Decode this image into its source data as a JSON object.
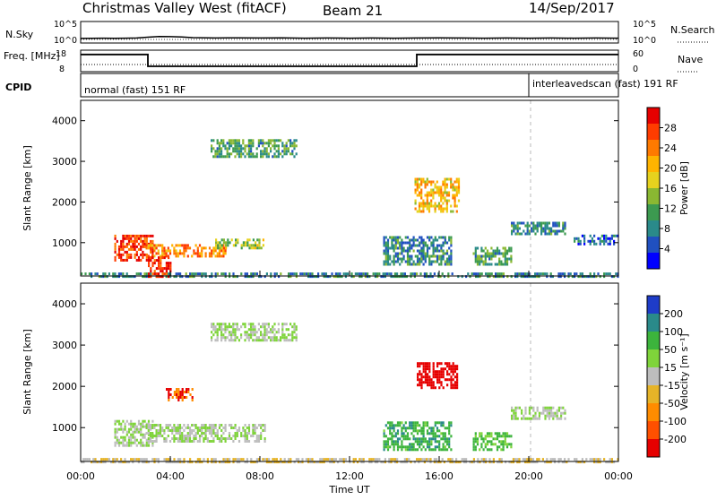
{
  "header": {
    "station": "Christmas Valley West (fitACF)",
    "beam": "Beam 21",
    "date": "14/Sep/2017"
  },
  "colors": {
    "background": "#ffffff",
    "axis": "#000000",
    "sky_line": "#000000",
    "ground_gray": "#bdbdbd"
  },
  "chart_data": [
    {
      "type": "line",
      "panel": "noise",
      "left_label": "N.Sky",
      "right_label": "N.Search",
      "left_ticks": [
        "10^5",
        "10^0"
      ],
      "right_ticks": [
        "10^5",
        "10^0"
      ],
      "x": [
        0,
        0.5,
        1,
        1.5,
        2,
        2.5,
        3,
        3.5,
        4,
        4.5,
        5,
        6,
        7,
        8,
        9,
        10,
        11,
        12,
        13,
        14,
        15,
        16,
        17,
        18,
        19,
        20,
        21,
        22,
        23,
        24
      ],
      "y": [
        0.3,
        0.35,
        0.4,
        0.35,
        0.4,
        0.45,
        0.7,
        0.9,
        0.85,
        0.75,
        0.55,
        0.45,
        0.5,
        0.45,
        0.5,
        0.4,
        0.45,
        0.4,
        0.45,
        0.4,
        0.45,
        0.5,
        0.45,
        0.4,
        0.45,
        0.4,
        0.45,
        0.4,
        0.45,
        0.4
      ],
      "ylim": [
        0,
        5
      ]
    },
    {
      "type": "line",
      "panel": "frequency",
      "left_label": "Freq. [MHz]",
      "right_label": "Nave",
      "left_ticks": [
        18,
        8
      ],
      "right_ticks": [
        60,
        0
      ],
      "freq_segments": [
        {
          "start": 0,
          "end": 3,
          "value": 16
        },
        {
          "start": 3,
          "end": 15,
          "value": 10.5
        },
        {
          "start": 15,
          "end": 24,
          "value": 16
        }
      ],
      "nave_value": 20,
      "ylim": [
        8,
        18
      ]
    },
    {
      "type": "table",
      "panel": "cpid",
      "label": "CPID",
      "segments": [
        {
          "start": 0,
          "end": 20,
          "text": "normal (fast) 151 RF"
        },
        {
          "start": 20,
          "end": 24,
          "text": "interleavedscan (fast) 191 RF"
        }
      ]
    },
    {
      "type": "heatmap",
      "panel": "power",
      "ylabel": "Slant Range [km]",
      "y_ticks": [
        1000,
        2000,
        3000,
        4000
      ],
      "ylim": [
        180,
        4500
      ],
      "colorbar_label": "Power [dB]",
      "colorbar_ticks": [
        4,
        8,
        12,
        16,
        20,
        24,
        28
      ],
      "colorbar_colors": [
        "#0000ff",
        "#2050c0",
        "#2a8a8a",
        "#3c9a50",
        "#8ab832",
        "#e6d21e",
        "#ffb400",
        "#ff7a00",
        "#ff3c00",
        "#e60000"
      ],
      "regions": [
        {
          "t0": 0.0,
          "t1": 24.0,
          "r0": 200,
          "r1": 330,
          "power": 8
        },
        {
          "t0": 1.5,
          "t1": 3.2,
          "r0": 600,
          "r1": 1250,
          "power": 26
        },
        {
          "t0": 2.9,
          "t1": 6.5,
          "r0": 700,
          "r1": 1000,
          "power": 22
        },
        {
          "t0": 6.0,
          "t1": 8.2,
          "r0": 900,
          "r1": 1150,
          "power": 14
        },
        {
          "t0": 3.0,
          "t1": 4.0,
          "r0": 200,
          "r1": 700,
          "power": 28
        },
        {
          "t0": 5.8,
          "t1": 9.6,
          "r0": 3150,
          "r1": 3550,
          "power": 10
        },
        {
          "t0": 14.9,
          "t1": 16.9,
          "r0": 1800,
          "r1": 2600,
          "power": 18
        },
        {
          "t0": 13.5,
          "t1": 16.5,
          "r0": 500,
          "r1": 1200,
          "power": 8
        },
        {
          "t0": 17.5,
          "t1": 19.2,
          "r0": 500,
          "r1": 900,
          "power": 10
        },
        {
          "t0": 19.2,
          "t1": 21.6,
          "r0": 1250,
          "r1": 1550,
          "power": 8
        },
        {
          "t0": 22.0,
          "t1": 24.0,
          "r0": 1000,
          "r1": 1200,
          "power": 6
        }
      ]
    },
    {
      "type": "heatmap",
      "panel": "velocity",
      "ylabel": "Slant Range [km]",
      "xlabel": "Time UT",
      "x_ticks": [
        "00:00",
        "04:00",
        "08:00",
        "12:00",
        "16:00",
        "20:00",
        "00:00"
      ],
      "y_ticks": [
        1000,
        2000,
        3000,
        4000
      ],
      "ylim": [
        180,
        4500
      ],
      "colorbar_label": "Velocity [m s⁻¹]",
      "colorbar_ticks": [
        200,
        100,
        50,
        15,
        -15,
        -50,
        -100,
        -200
      ],
      "colorbar_colors": [
        "#1e3cc8",
        "#2a8a8a",
        "#3cb43c",
        "#7fd43a",
        "#bdbdbd",
        "#e6b428",
        "#ff8c00",
        "#ff5000",
        "#e60000"
      ],
      "regions": [
        {
          "t0": 0.0,
          "t1": 24.0,
          "r0": 200,
          "r1": 330,
          "velocity": -30
        },
        {
          "t0": 1.5,
          "t1": 3.2,
          "r0": 600,
          "r1": 1250,
          "velocity": 0
        },
        {
          "t0": 2.9,
          "t1": 8.2,
          "r0": 700,
          "r1": 1150,
          "velocity": 0
        },
        {
          "t0": 5.8,
          "t1": 9.6,
          "r0": 3150,
          "r1": 3550,
          "velocity": 0
        },
        {
          "t0": 15.0,
          "t1": 16.8,
          "r0": 2000,
          "r1": 2600,
          "velocity": -180
        },
        {
          "t0": 13.5,
          "t1": 16.5,
          "r0": 500,
          "r1": 1200,
          "velocity": 60
        },
        {
          "t0": 17.5,
          "t1": 19.2,
          "r0": 500,
          "r1": 900,
          "velocity": 40
        },
        {
          "t0": 19.2,
          "t1": 21.6,
          "r0": 1250,
          "r1": 1550,
          "velocity": 0
        },
        {
          "t0": 3.8,
          "t1": 5.0,
          "r0": 1700,
          "r1": 2000,
          "velocity": -150
        }
      ]
    }
  ]
}
